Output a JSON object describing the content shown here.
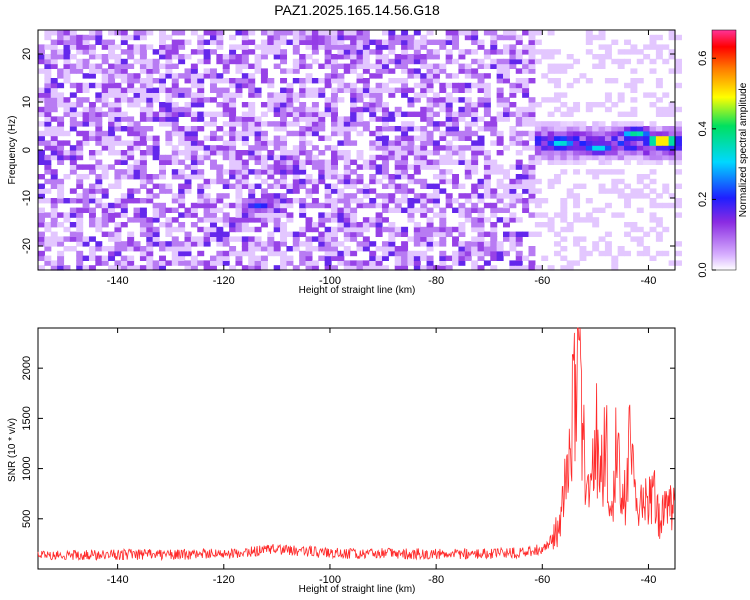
{
  "chart_data": [
    {
      "type": "heatmap",
      "title": "PAZ1.2025.165.14.56.G18",
      "xlabel": "Height of straight line (km)",
      "ylabel": "Frequency (Hz)",
      "xlim": [
        -155,
        -35
      ],
      "ylim": [
        -25,
        25
      ],
      "xticks": [
        -140,
        -120,
        -100,
        -80,
        -60,
        -40
      ],
      "yticks": [
        -20,
        -10,
        0,
        10,
        20
      ],
      "colorbar": {
        "label": "Normalized spectral amplitude",
        "range": [
          0.0,
          0.68
        ],
        "ticks": [
          0.0,
          0.2,
          0.4,
          0.6
        ],
        "colormap": "rainbow (purple → blue → cyan → green → yellow → red → magenta)"
      },
      "notable_features": [
        {
          "x": -57,
          "y": 1.2,
          "amplitude": 0.35
        },
        {
          "x": -50,
          "y": 0.0,
          "amplitude": 0.33
        },
        {
          "x": -43,
          "y": 3.0,
          "amplitude": 0.38
        },
        {
          "x": -38,
          "y": 1.5,
          "amplitude": 0.62
        },
        {
          "x": -114,
          "y": -12.0,
          "amplitude": 0.22
        },
        {
          "x": -103,
          "y": 22.5,
          "amplitude": 0.15
        }
      ],
      "grid": false
    },
    {
      "type": "line",
      "title": "",
      "xlabel": "Height of straight line (km)",
      "ylabel": "SNR (10 * v/v)",
      "xlim": [
        -155,
        -35
      ],
      "ylim": [
        0,
        2400
      ],
      "xticks": [
        -140,
        -120,
        -100,
        -80,
        -60,
        -40
      ],
      "yticks": [
        500,
        1000,
        1500,
        2000
      ],
      "color": "#ff2a2a",
      "series": [
        {
          "x": [
            -155,
            -140,
            -120,
            -110,
            -100,
            -80,
            -65,
            -60,
            -58,
            -57,
            -56,
            -55,
            -54,
            -53.5,
            -53,
            -52,
            -51,
            -50,
            -49,
            -48,
            -47,
            -46,
            -45,
            -44,
            -43.5,
            -43,
            -42,
            -41,
            -40,
            -39,
            -38,
            -37,
            -36,
            -35
          ],
          "y": [
            140,
            145,
            150,
            200,
            155,
            150,
            160,
            200,
            300,
            400,
            650,
            1100,
            1700,
            2400,
            1900,
            1100,
            800,
            1400,
            900,
            1300,
            500,
            1350,
            600,
            800,
            1300,
            900,
            400,
            700,
            650,
            750,
            500,
            700,
            600,
            600
          ]
        }
      ],
      "grid": false
    }
  ]
}
